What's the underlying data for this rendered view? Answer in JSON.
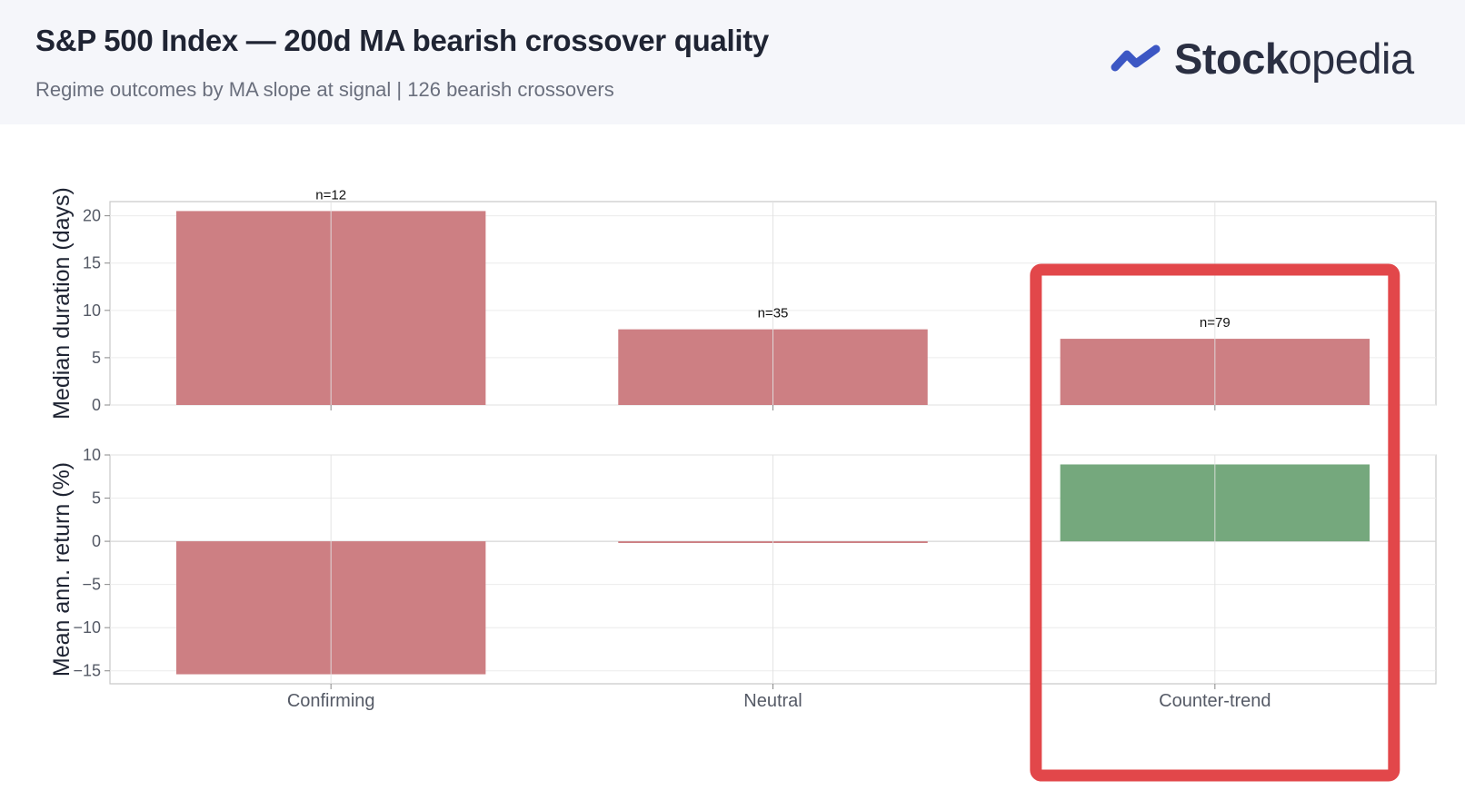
{
  "header": {
    "title": "S&P 500 Index — 200d MA bearish crossover quality",
    "subtitle": "Regime outcomes by MA slope at signal  |  126 bearish crossovers"
  },
  "logo": {
    "icon": "trend-check-icon",
    "text_bold": "Stock",
    "text_regular": "opedia",
    "color": "#3c57c4"
  },
  "colors": {
    "negative_bar": "#cd7f83",
    "positive_bar": "#75a87d",
    "highlight_box": "#e2474a"
  },
  "chart_data": [
    {
      "type": "bar",
      "ylabel": "Median duration (days)",
      "categories": [
        "Confirming",
        "Neutral",
        "Counter-trend"
      ],
      "values": [
        20.5,
        8,
        7
      ],
      "annotations": [
        "n=12",
        "n=35",
        "n=79"
      ],
      "ylim": [
        0,
        21.5
      ],
      "yticks": [
        0,
        5,
        10,
        15,
        20
      ],
      "grid": true
    },
    {
      "type": "bar",
      "ylabel": "Mean ann. return (%)",
      "categories": [
        "Confirming",
        "Neutral",
        "Counter-trend"
      ],
      "values": [
        -15.4,
        -0.2,
        8.9
      ],
      "ylim": [
        -16.5,
        10
      ],
      "yticks": [
        -15,
        -10,
        -5,
        0,
        5,
        10
      ],
      "grid": true
    }
  ],
  "highlight": {
    "category": "Counter-trend"
  }
}
